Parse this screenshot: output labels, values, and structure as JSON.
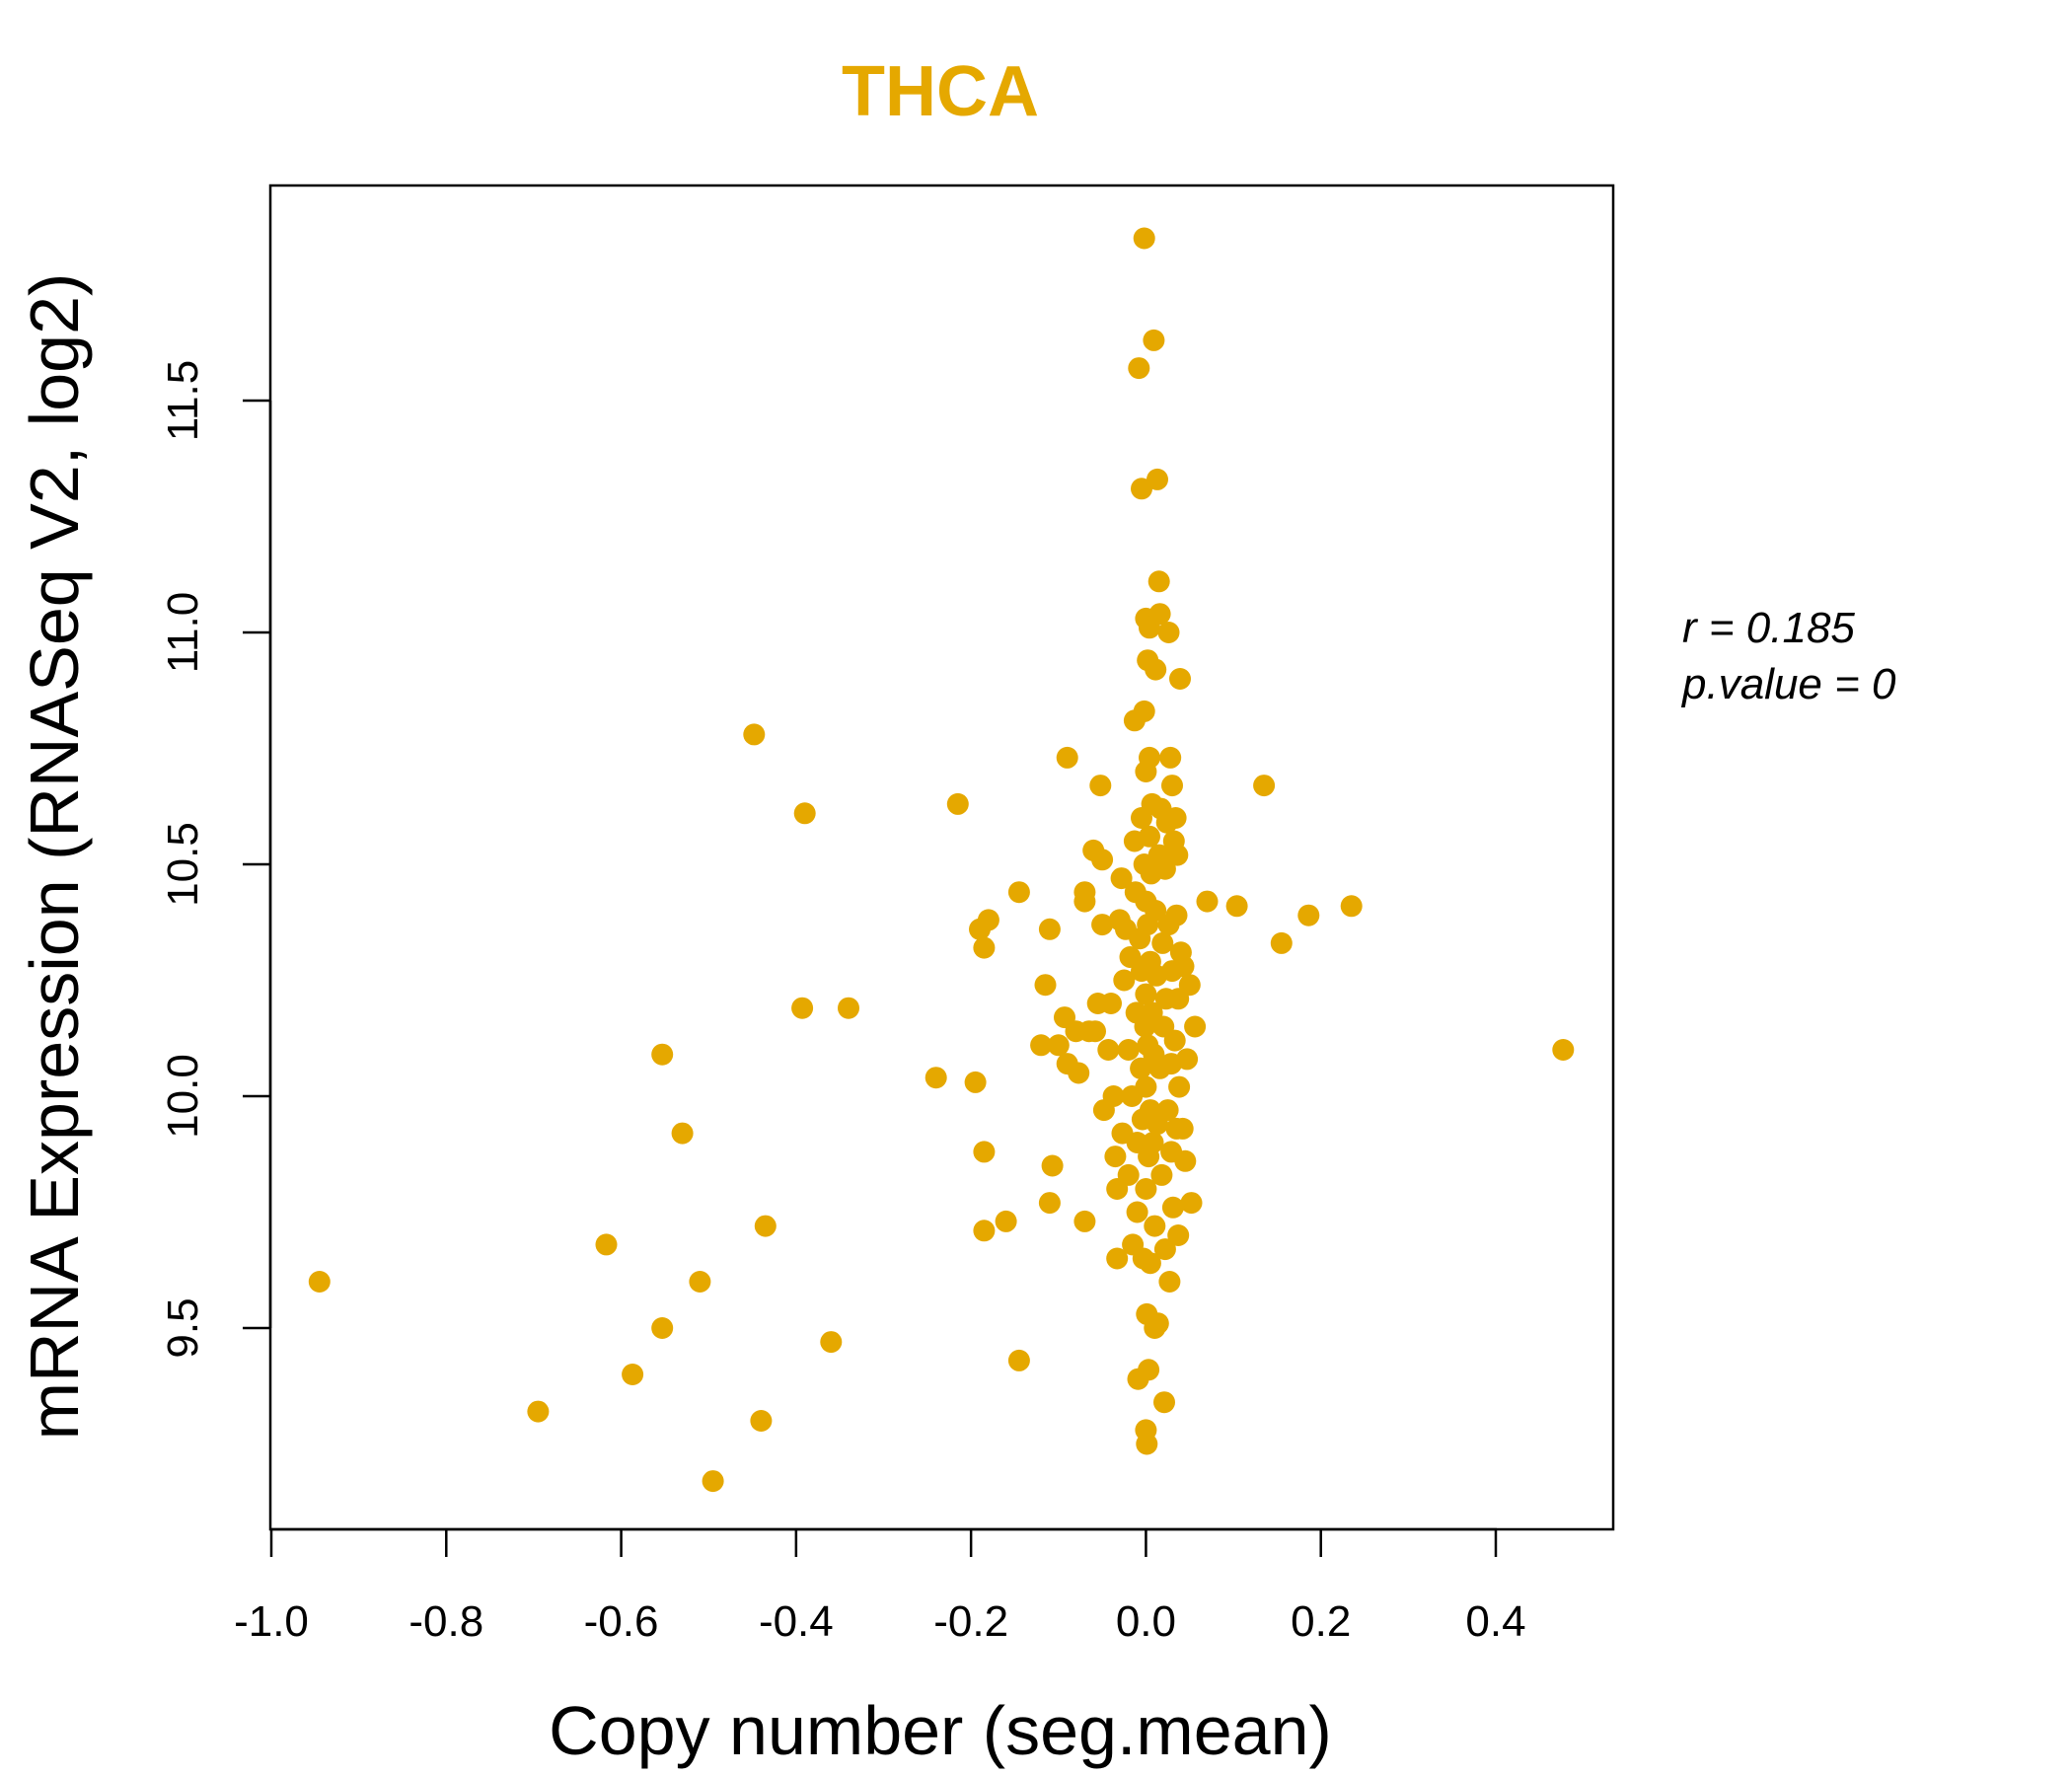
{
  "chart_data": {
    "type": "scatter",
    "title": "THCA",
    "xlabel": "Copy number (seg.mean)",
    "ylabel": "mRNA Expression (RNASeq V2, log2)",
    "xlim": [
      -1.0,
      0.5
    ],
    "ylim": [
      9.12,
      11.9
    ],
    "x_ticks": [
      -1.0,
      -0.8,
      -0.6,
      -0.4,
      -0.2,
      0.0,
      0.2,
      0.4
    ],
    "x_tick_labels": [
      "-1.0",
      "-0.8",
      "-0.6",
      "-0.4",
      "-0.2",
      "0.0",
      "0.2",
      "0.4"
    ],
    "y_ticks": [
      9.5,
      10.0,
      10.5,
      11.0,
      11.5
    ],
    "y_tick_labels": [
      "9.5",
      "10.0",
      "10.5",
      "11.0",
      "11.5"
    ],
    "grid": false,
    "point_color": "#E5A800",
    "stats": {
      "r_label": "r = 0.185",
      "p_label": "p.value = 0"
    },
    "points": [
      [
        -0.945,
        9.6
      ],
      [
        -0.695,
        9.32
      ],
      [
        -0.617,
        9.68
      ],
      [
        -0.587,
        9.4
      ],
      [
        -0.553,
        9.5
      ],
      [
        -0.553,
        10.09
      ],
      [
        -0.53,
        9.92
      ],
      [
        -0.51,
        9.6
      ],
      [
        -0.495,
        9.17
      ],
      [
        -0.448,
        10.78
      ],
      [
        -0.44,
        9.3
      ],
      [
        -0.435,
        9.72
      ],
      [
        -0.39,
        10.61
      ],
      [
        -0.393,
        10.19
      ],
      [
        -0.36,
        9.47
      ],
      [
        -0.34,
        10.19
      ],
      [
        -0.24,
        10.04
      ],
      [
        -0.215,
        10.63
      ],
      [
        -0.195,
        10.03
      ],
      [
        -0.19,
        10.36
      ],
      [
        -0.18,
        10.38
      ],
      [
        -0.185,
        10.32
      ],
      [
        -0.185,
        9.88
      ],
      [
        -0.185,
        9.71
      ],
      [
        -0.16,
        9.73
      ],
      [
        -0.145,
        10.44
      ],
      [
        -0.145,
        9.43
      ],
      [
        -0.12,
        10.11
      ],
      [
        -0.115,
        10.24
      ],
      [
        -0.11,
        10.36
      ],
      [
        -0.11,
        9.77
      ],
      [
        -0.107,
        9.85
      ],
      [
        -0.1,
        10.11
      ],
      [
        -0.093,
        10.17
      ],
      [
        -0.09,
        10.73
      ],
      [
        -0.09,
        10.07
      ],
      [
        -0.08,
        10.14
      ],
      [
        -0.077,
        10.05
      ],
      [
        -0.07,
        10.44
      ],
      [
        -0.07,
        10.42
      ],
      [
        -0.07,
        9.73
      ],
      [
        -0.065,
        10.14
      ],
      [
        -0.06,
        10.53
      ],
      [
        -0.058,
        10.14
      ],
      [
        -0.055,
        10.2
      ],
      [
        -0.052,
        10.67
      ],
      [
        -0.05,
        10.51
      ],
      [
        -0.05,
        10.37
      ],
      [
        -0.048,
        9.97
      ],
      [
        -0.043,
        10.1
      ],
      [
        -0.04,
        10.2
      ],
      [
        -0.037,
        10.0
      ],
      [
        -0.035,
        9.87
      ],
      [
        -0.033,
        9.8
      ],
      [
        -0.033,
        9.65
      ],
      [
        -0.03,
        10.38
      ],
      [
        -0.028,
        10.47
      ],
      [
        -0.027,
        9.92
      ],
      [
        -0.025,
        10.25
      ],
      [
        -0.023,
        10.36
      ],
      [
        -0.02,
        10.1
      ],
      [
        -0.02,
        9.83
      ],
      [
        -0.018,
        10.3
      ],
      [
        -0.016,
        10.0
      ],
      [
        -0.015,
        9.68
      ],
      [
        -0.013,
        10.81
      ],
      [
        -0.013,
        10.55
      ],
      [
        -0.012,
        10.44
      ],
      [
        -0.011,
        10.18
      ],
      [
        -0.01,
        9.9
      ],
      [
        -0.01,
        9.75
      ],
      [
        -0.009,
        9.39
      ],
      [
        -0.008,
        11.57
      ],
      [
        -0.007,
        10.34
      ],
      [
        -0.006,
        10.06
      ],
      [
        -0.005,
        11.31
      ],
      [
        -0.005,
        10.6
      ],
      [
        -0.005,
        10.27
      ],
      [
        -0.004,
        9.95
      ],
      [
        -0.003,
        9.65
      ],
      [
        -0.002,
        11.85
      ],
      [
        -0.002,
        10.83
      ],
      [
        -0.002,
        10.5
      ],
      [
        -0.001,
        10.15
      ],
      [
        0.0,
        11.03
      ],
      [
        0.0,
        10.7
      ],
      [
        0.0,
        10.42
      ],
      [
        0.0,
        10.22
      ],
      [
        0.0,
        10.02
      ],
      [
        0.0,
        9.8
      ],
      [
        0.0,
        9.28
      ],
      [
        0.001,
        9.53
      ],
      [
        0.001,
        9.25
      ],
      [
        0.002,
        10.94
      ],
      [
        0.002,
        10.37
      ],
      [
        0.002,
        10.11
      ],
      [
        0.003,
        9.87
      ],
      [
        0.003,
        9.41
      ],
      [
        0.004,
        11.01
      ],
      [
        0.004,
        10.73
      ],
      [
        0.004,
        10.56
      ],
      [
        0.005,
        10.29
      ],
      [
        0.005,
        9.97
      ],
      [
        0.005,
        9.64
      ],
      [
        0.006,
        10.48
      ],
      [
        0.007,
        10.63
      ],
      [
        0.007,
        10.18
      ],
      [
        0.008,
        9.9
      ],
      [
        0.009,
        11.63
      ],
      [
        0.009,
        10.09
      ],
      [
        0.01,
        9.72
      ],
      [
        0.01,
        9.5
      ],
      [
        0.011,
        10.92
      ],
      [
        0.011,
        10.4
      ],
      [
        0.012,
        10.26
      ],
      [
        0.013,
        11.33
      ],
      [
        0.013,
        9.94
      ],
      [
        0.014,
        9.51
      ],
      [
        0.015,
        11.11
      ],
      [
        0.015,
        10.52
      ],
      [
        0.016,
        11.04
      ],
      [
        0.016,
        10.06
      ],
      [
        0.017,
        10.62
      ],
      [
        0.018,
        9.83
      ],
      [
        0.019,
        10.33
      ],
      [
        0.02,
        10.15
      ],
      [
        0.021,
        9.34
      ],
      [
        0.022,
        10.49
      ],
      [
        0.022,
        9.67
      ],
      [
        0.023,
        10.21
      ],
      [
        0.024,
        10.59
      ],
      [
        0.025,
        9.97
      ],
      [
        0.026,
        11.0
      ],
      [
        0.026,
        10.37
      ],
      [
        0.027,
        9.6
      ],
      [
        0.028,
        10.73
      ],
      [
        0.029,
        10.07
      ],
      [
        0.029,
        9.88
      ],
      [
        0.03,
        10.67
      ],
      [
        0.03,
        10.27
      ],
      [
        0.031,
        9.76
      ],
      [
        0.032,
        10.55
      ],
      [
        0.033,
        10.12
      ],
      [
        0.034,
        10.6
      ],
      [
        0.035,
        10.39
      ],
      [
        0.035,
        9.93
      ],
      [
        0.036,
        10.52
      ],
      [
        0.037,
        10.21
      ],
      [
        0.037,
        9.7
      ],
      [
        0.038,
        10.02
      ],
      [
        0.039,
        10.9
      ],
      [
        0.04,
        10.31
      ],
      [
        0.042,
        9.93
      ],
      [
        0.043,
        10.28
      ],
      [
        0.045,
        9.86
      ],
      [
        0.047,
        10.08
      ],
      [
        0.05,
        10.24
      ],
      [
        0.052,
        9.77
      ],
      [
        0.056,
        10.15
      ],
      [
        0.07,
        10.42
      ],
      [
        0.104,
        10.41
      ],
      [
        0.135,
        10.67
      ],
      [
        0.155,
        10.33
      ],
      [
        0.186,
        10.39
      ],
      [
        0.235,
        10.41
      ],
      [
        0.477,
        10.1
      ]
    ]
  }
}
